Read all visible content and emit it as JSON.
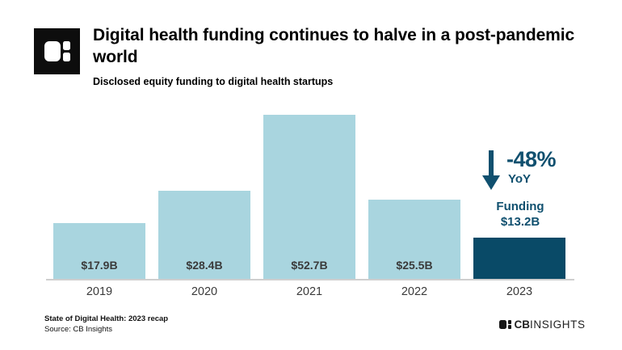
{
  "header": {
    "title": "Digital health funding continues to halve in a post-pandemic world",
    "subtitle": "Disclosed equity funding to digital health startups"
  },
  "chart_data": {
    "type": "bar",
    "categories": [
      "2019",
      "2020",
      "2021",
      "2022",
      "2023"
    ],
    "values": [
      17.9,
      28.4,
      52.7,
      25.5,
      13.2
    ],
    "value_labels": [
      "$17.9B",
      "$28.4B",
      "$52.7B",
      "$25.5B",
      ""
    ],
    "unit": "USD billions",
    "ylim": [
      0,
      55
    ],
    "grid": false,
    "bar_color": "#a9d5df",
    "highlight_index": 4,
    "highlight_color": "#094a67",
    "label_color": "#3b3b3b"
  },
  "annotation": {
    "delta": "-48%",
    "period": "YoY",
    "funding_label": "Funding",
    "funding_value": "$13.2B",
    "color": "#10506f",
    "arrow_icon": "down-arrow"
  },
  "footer": {
    "report": "State of Digital Health: 2023 recap",
    "source": "Source: CB Insights"
  },
  "branding": {
    "logo_icon": "cb-insights-mark",
    "wordmark_cb": "CB",
    "wordmark_insights": "INSIGHTS"
  }
}
